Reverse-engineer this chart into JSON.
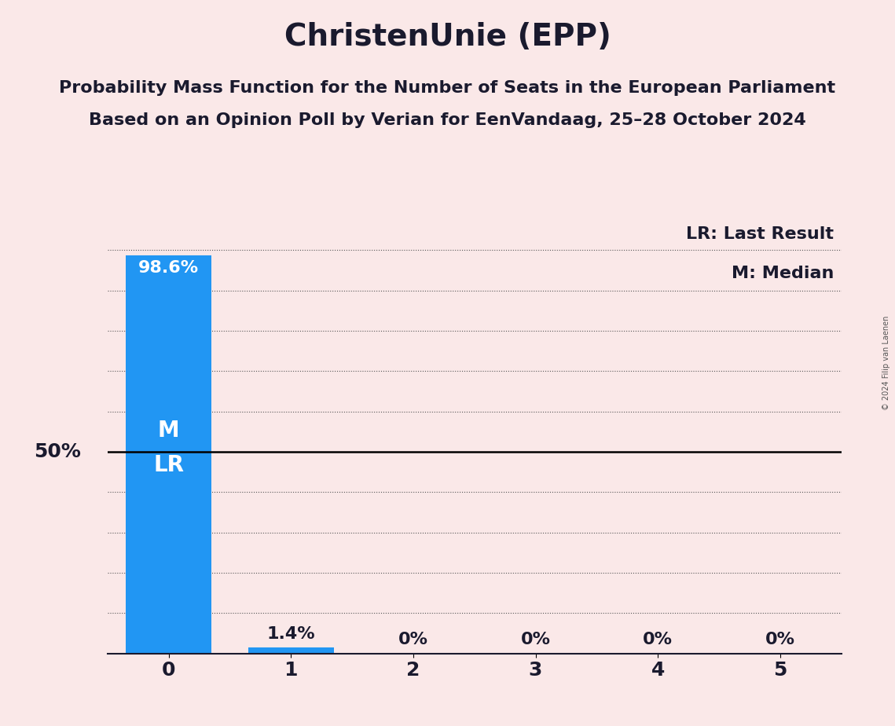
{
  "title": "ChristenUnie (EPP)",
  "subtitle1": "Probability Mass Function for the Number of Seats in the European Parliament",
  "subtitle2": "Based on an Opinion Poll by Verian for EenVandaag, 25–28 October 2024",
  "categories": [
    0,
    1,
    2,
    3,
    4,
    5
  ],
  "values": [
    0.986,
    0.014,
    0.0,
    0.0,
    0.0,
    0.0
  ],
  "bar_color": "#2196F3",
  "bar_labels": [
    "98.6%",
    "1.4%",
    "0%",
    "0%",
    "0%",
    "0%"
  ],
  "background_color": "#FAE8E8",
  "bar_label_color_inside": "#FFFFFF",
  "bar_label_color_outside": "#1a1a2e",
  "ylabel_50": "50%",
  "median_seat": 0,
  "last_result_seat": 0,
  "annotation_lr": "LR: Last Result",
  "annotation_m": "M: Median",
  "copyright": "© 2024 Filip van Laenen",
  "ylim": [
    0,
    1.08
  ],
  "yticks": [
    0.0,
    0.1,
    0.2,
    0.3,
    0.4,
    0.5,
    0.6,
    0.7,
    0.8,
    0.9,
    1.0
  ],
  "title_fontsize": 28,
  "subtitle_fontsize": 16,
  "bar_label_fontsize": 16,
  "axis_label_fontsize": 18,
  "legend_fontsize": 16,
  "fifty_pct_fontsize": 18,
  "m_lr_fontsize": 20
}
